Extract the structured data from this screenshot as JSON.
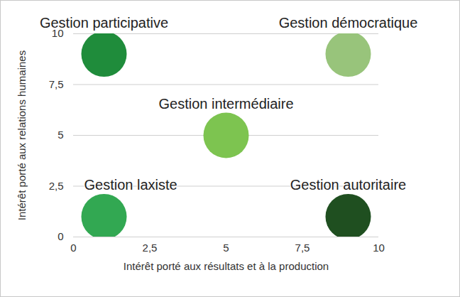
{
  "chart_data": {
    "type": "scatter",
    "x_label": "Intérêt porté aux résultats et à la production",
    "y_label": "Intérêt porté aux relations humaines",
    "point_labels": [
      "Gestion participative",
      "Gestion démocratique",
      "Gestion intermédiaire",
      "Gestion laxiste",
      "Gestion autoritaire"
    ],
    "x": [
      1,
      9,
      5,
      1,
      9
    ],
    "values": [
      9,
      9,
      5,
      1,
      1
    ],
    "colors": [
      "#1f8c3b",
      "#98c47b",
      "#7dc450",
      "#32a852",
      "#1f4f20"
    ],
    "xlim": [
      0,
      10
    ],
    "ylim": [
      0,
      10
    ],
    "xticks": [
      0,
      {
        "value": 2.5,
        "label": "2,5"
      },
      5,
      {
        "value": 7.5,
        "label": "7,5"
      },
      10
    ],
    "yticks": [
      0,
      {
        "value": 2.5,
        "label": "2,5"
      },
      5,
      {
        "value": 7.5,
        "label": "7,5"
      },
      10
    ],
    "grid": "y"
  }
}
